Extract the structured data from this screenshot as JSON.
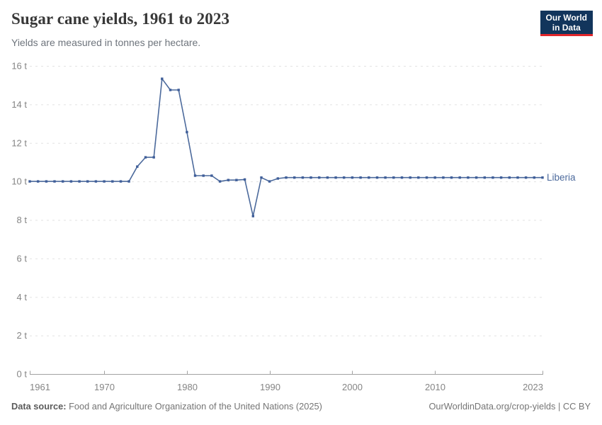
{
  "header": {
    "title": "Sugar cane yields, 1961 to 2023",
    "subtitle": "Yields are measured in tonnes per hectare.",
    "logo": {
      "line1": "Our World",
      "line2": "in Data"
    }
  },
  "footer": {
    "source_label": "Data source:",
    "source_text": " Food and Agriculture Organization of the United Nations (2025)",
    "link_text": "OurWorldinData.org/crop-yields | CC BY"
  },
  "colors": {
    "line": "#4c6a9c",
    "marker": "#3f5e99",
    "series_label": "#4c6a9c",
    "grid": "#e2e2e2",
    "axis": "#a1a1a1",
    "tick_text": "#858585",
    "logo_bg": "#12355c",
    "logo_accent": "#e2262b"
  },
  "chart_data": {
    "type": "line",
    "title": "Sugar cane yields, 1961 to 2023",
    "subtitle": "Yields are measured in tonnes per hectare.",
    "xlabel": "",
    "ylabel": "tonnes per hectare",
    "unit_suffix": " t",
    "ylim": [
      0,
      16
    ],
    "ytick_step": 2,
    "grid": "dashed-horizontal",
    "legend_position": "end-of-line",
    "xticks": [
      1961,
      1970,
      1980,
      1990,
      2000,
      2010,
      2023
    ],
    "x": [
      1961,
      1962,
      1963,
      1964,
      1965,
      1966,
      1967,
      1968,
      1969,
      1970,
      1971,
      1972,
      1973,
      1974,
      1975,
      1976,
      1977,
      1978,
      1979,
      1980,
      1981,
      1982,
      1983,
      1984,
      1985,
      1986,
      1987,
      1988,
      1989,
      1990,
      1991,
      1992,
      1993,
      1994,
      1995,
      1996,
      1997,
      1998,
      1999,
      2000,
      2001,
      2002,
      2003,
      2004,
      2005,
      2006,
      2007,
      2008,
      2009,
      2010,
      2011,
      2012,
      2013,
      2014,
      2015,
      2016,
      2017,
      2018,
      2019,
      2020,
      2021,
      2022,
      2023
    ],
    "series": [
      {
        "name": "Liberia",
        "values": [
          10,
          10,
          10,
          10,
          10,
          10,
          10,
          10,
          10,
          10,
          10,
          10,
          10,
          10.77,
          11.25,
          11.25,
          15.33,
          14.75,
          14.75,
          12.56,
          10.3,
          10.3,
          10.3,
          10,
          10.07,
          10.07,
          10.1,
          8.2,
          10.2,
          10,
          10.15,
          10.2,
          10.2,
          10.2,
          10.2,
          10.2,
          10.2,
          10.2,
          10.2,
          10.2,
          10.2,
          10.2,
          10.2,
          10.2,
          10.2,
          10.2,
          10.2,
          10.2,
          10.2,
          10.2,
          10.2,
          10.2,
          10.2,
          10.2,
          10.2,
          10.2,
          10.2,
          10.2,
          10.2,
          10.2,
          10.2,
          10.2,
          10.2
        ]
      }
    ]
  }
}
